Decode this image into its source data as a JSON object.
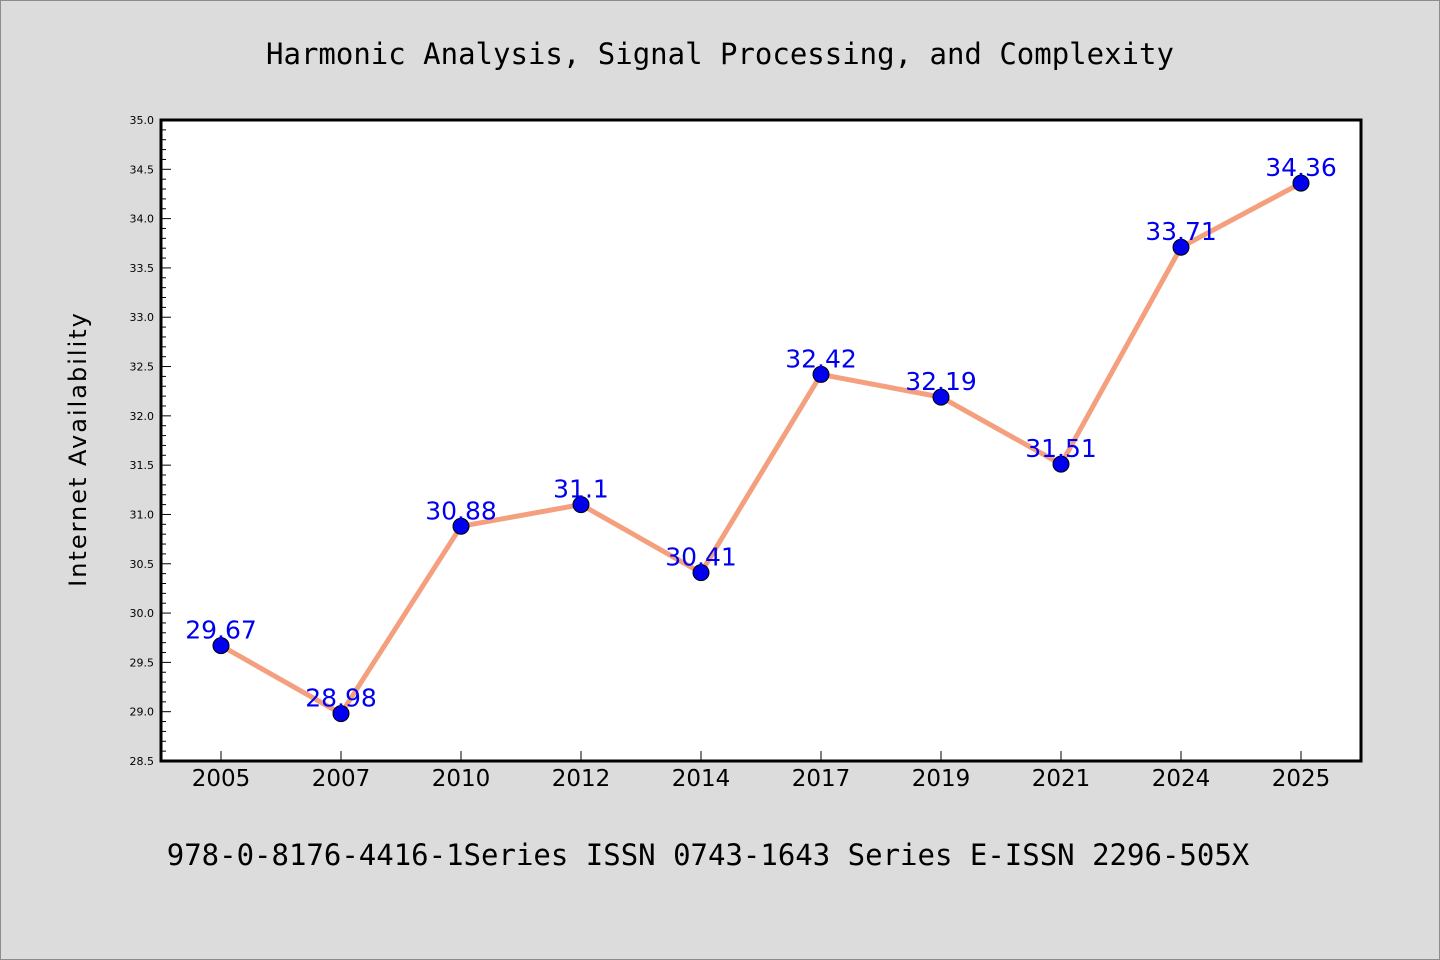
{
  "chart_data": {
    "type": "line",
    "title": "Harmonic Analysis, Signal Processing, and Complexity",
    "xlabel": "",
    "ylabel": "Internet Availability",
    "categories": [
      "2005",
      "2007",
      "2010",
      "2012",
      "2014",
      "2017",
      "2019",
      "2021",
      "2024",
      "2025"
    ],
    "series": [
      {
        "values": [
          29.67,
          28.98,
          30.88,
          31.1,
          30.41,
          32.42,
          32.19,
          31.51,
          33.71,
          34.36
        ],
        "labels": [
          "29.67",
          "28.98",
          "30.88",
          "31.1",
          "30.41",
          "32.42",
          "32.19",
          "31.51",
          "33.71",
          "34.36"
        ],
        "line_color": "#f4a07e",
        "marker_color": "#0000ee",
        "label_color": "#0000ee"
      }
    ],
    "ylim": [
      28.5,
      35.0
    ],
    "yticks": [
      "28.5",
      "29.0",
      "29.5",
      "30.0",
      "30.5",
      "31.0",
      "31.5",
      "32.0",
      "32.5",
      "33.0",
      "33.5",
      "34.0",
      "34.5",
      "35.0"
    ],
    "grid": false,
    "legend": "none"
  },
  "footer": {
    "text": "978-0-8176-4416-1Series ISSN 0743-1643 Series E-ISSN 2296-505X"
  },
  "colors": {
    "background": "#dcdcdc",
    "plot_area": "#ffffff"
  }
}
